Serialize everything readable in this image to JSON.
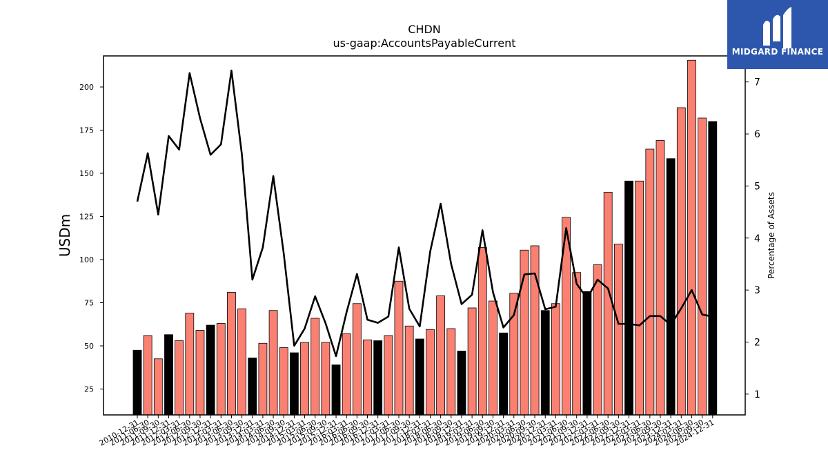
{
  "chart_data": {
    "type": "bar",
    "title": "CHDN",
    "subtitle": "us-gaap:AccountsPayableCurrent",
    "ylabel": "USDm",
    "y2label": "Percentage of Assets",
    "ylim": [
      10,
      218
    ],
    "y2lim": [
      0.6,
      7.5
    ],
    "yticks": [
      25,
      50,
      75,
      100,
      125,
      150,
      175,
      200
    ],
    "y2ticks": [
      1,
      2,
      3,
      4,
      5,
      6,
      7
    ],
    "categories": [
      "2010-12-31",
      "2011-06-30",
      "2011-09-30",
      "2011-12-31",
      "2012-03-31",
      "2012-06-30",
      "2012-09-30",
      "2012-12-31",
      "2013-03-31",
      "2013-06-30",
      "2013-09-30",
      "2013-12-31",
      "2014-03-31",
      "2014-06-30",
      "2014-09-30",
      "2014-12-31",
      "2015-03-31",
      "2015-06-30",
      "2015-09-30",
      "2015-12-31",
      "2016-03-31",
      "2016-06-30",
      "2016-09-30",
      "2016-12-31",
      "2017-03-31",
      "2017-06-30",
      "2017-09-30",
      "2017-12-31",
      "2018-03-31",
      "2018-06-30",
      "2018-09-30",
      "2018-12-31",
      "2019-03-31",
      "2019-06-30",
      "2019-09-30",
      "2019-12-31",
      "2020-03-31",
      "2020-06-30",
      "2020-09-30",
      "2020-12-31",
      "2021-03-31",
      "2021-06-30",
      "2021-09-30",
      "2021-12-31",
      "2022-03-31",
      "2022-06-30",
      "2022-09-30",
      "2022-12-31",
      "2023-03-31",
      "2023-06-30",
      "2023-09-30",
      "2023-12-31",
      "2024-03-31",
      "2024-06-30",
      "2024-09-30",
      "2024-12-31"
    ],
    "series": [
      {
        "type": "bar",
        "values": [
          47.5,
          56,
          42.5,
          56.5,
          53,
          69,
          59,
          62,
          63,
          81,
          71.5,
          43,
          51.5,
          70.5,
          49,
          46,
          52,
          66,
          52,
          39,
          57,
          74.5,
          53.5,
          53,
          56,
          87.5,
          61.5,
          54,
          59.5,
          79,
          60,
          47,
          72,
          107,
          76,
          57.5,
          80.5,
          105.5,
          108,
          70.5,
          74.5,
          124.5,
          92.5,
          81.5,
          97,
          139,
          109,
          145.5,
          145.5,
          164,
          169,
          158.5,
          188,
          215.5,
          182,
          180
        ],
        "highlight": [
          true,
          false,
          false,
          true,
          false,
          false,
          false,
          true,
          false,
          false,
          false,
          true,
          false,
          false,
          false,
          true,
          false,
          false,
          false,
          true,
          false,
          false,
          false,
          true,
          false,
          false,
          false,
          true,
          false,
          false,
          false,
          true,
          false,
          false,
          false,
          true,
          false,
          false,
          false,
          true,
          false,
          false,
          false,
          true,
          false,
          false,
          false,
          true,
          false,
          false,
          false,
          true,
          false,
          false,
          false,
          true
        ]
      },
      {
        "type": "line",
        "axis": "right",
        "values": [
          4.7,
          5.63,
          4.45,
          5.96,
          5.7,
          7.17,
          6.3,
          5.6,
          5.8,
          7.22,
          5.6,
          3.2,
          3.82,
          5.19,
          3.7,
          1.93,
          2.26,
          2.88,
          2.36,
          1.73,
          2.57,
          3.31,
          2.43,
          2.37,
          2.49,
          3.82,
          2.64,
          2.3,
          3.74,
          4.66,
          3.5,
          2.73,
          2.91,
          4.15,
          2.96,
          2.28,
          2.52,
          3.3,
          3.32,
          2.63,
          2.68,
          4.19,
          3.12,
          2.84,
          3.2,
          3.03,
          2.35,
          2.35,
          2.32,
          2.5,
          2.5,
          2.33,
          2.65,
          3.0,
          2.53,
          2.49
        ]
      }
    ],
    "colors": {
      "bar": "#fa8072",
      "highlight_bar": "#000000",
      "line": "#000000"
    },
    "grid": false
  },
  "logo": {
    "name": "midgard-finance",
    "text": "MIDGARD FINANCE"
  }
}
